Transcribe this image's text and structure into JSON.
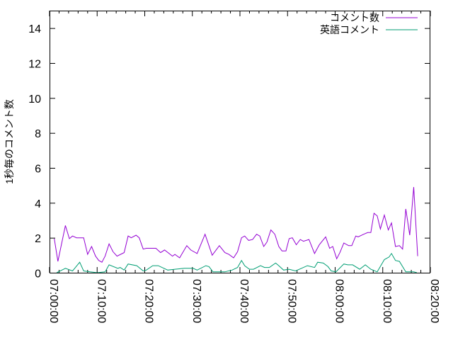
{
  "chart_data": {
    "type": "line",
    "title": "",
    "xlabel": "",
    "ylabel": "1秒毎のコメント数",
    "xlim": [
      "07:00:00",
      "08:20:00"
    ],
    "ylim": [
      0,
      15
    ],
    "x_ticks": [
      "07:00:00",
      "07:10:00",
      "07:20:00",
      "07:30:00",
      "07:40:00",
      "07:50:00",
      "08:00:00",
      "08:10:00",
      "08:20:00"
    ],
    "y_ticks": [
      "0",
      "2",
      "4",
      "6",
      "8",
      "10",
      "12",
      "14"
    ],
    "grid": false,
    "legend": "top-right",
    "series": [
      {
        "name": "コメント数",
        "color": "#9400d3",
        "x": [
          "07:01:00",
          "07:01:45",
          "07:03:20",
          "07:04:10",
          "07:04:50",
          "07:05:40",
          "07:07:10",
          "07:08:00",
          "07:08:50",
          "07:09:40",
          "07:10:20",
          "07:11:00",
          "07:11:40",
          "07:12:30",
          "07:13:20",
          "07:14:10",
          "07:15:40",
          "07:16:30",
          "07:17:10",
          "07:18:10",
          "07:18:50",
          "07:19:40",
          "07:20:20",
          "07:22:20",
          "07:23:20",
          "07:24:10",
          "07:25:50",
          "07:26:20",
          "07:27:20",
          "07:28:50",
          "07:29:40",
          "07:31:00",
          "07:32:40",
          "07:34:10",
          "07:35:40",
          "07:36:50",
          "07:37:40",
          "07:38:40",
          "07:39:30",
          "07:40:20",
          "07:41:00",
          "07:41:50",
          "07:42:40",
          "07:43:30",
          "07:44:10",
          "07:45:00",
          "07:45:40",
          "07:46:30",
          "07:47:20",
          "07:48:10",
          "07:48:50",
          "07:49:40",
          "07:50:20",
          "07:51:00",
          "07:51:50",
          "07:52:40",
          "07:53:20",
          "07:54:30",
          "07:55:40",
          "07:56:40",
          "07:58:00",
          "07:58:50",
          "07:59:30",
          "08:00:20",
          "08:01:00",
          "08:01:50",
          "08:02:50",
          "08:03:30",
          "08:04:20",
          "08:04:50",
          "08:06:00",
          "08:06:50",
          "08:07:30",
          "08:08:10",
          "08:08:50",
          "08:09:30",
          "08:10:20",
          "08:11:10",
          "08:11:50",
          "08:12:40",
          "08:13:30",
          "08:14:10",
          "08:14:50",
          "08:15:40",
          "08:16:30",
          "08:17:20"
        ],
        "y": [
          1.95,
          0.65,
          2.7,
          1.95,
          2.1,
          2.0,
          2.0,
          1.05,
          1.5,
          0.95,
          0.7,
          0.6,
          0.95,
          1.65,
          1.2,
          0.95,
          1.15,
          2.1,
          2.0,
          2.15,
          2.0,
          1.35,
          1.4,
          1.4,
          1.15,
          1.3,
          0.95,
          1.05,
          0.85,
          1.55,
          1.3,
          1.1,
          2.2,
          1.0,
          1.55,
          1.15,
          1.05,
          0.85,
          1.2,
          2.0,
          2.1,
          1.85,
          1.9,
          2.2,
          2.1,
          1.5,
          1.75,
          2.45,
          2.2,
          1.5,
          1.25,
          1.25,
          1.95,
          2.0,
          1.6,
          1.9,
          1.8,
          1.9,
          1.1,
          1.6,
          2.05,
          1.4,
          1.5,
          0.8,
          1.15,
          1.7,
          1.55,
          1.55,
          2.1,
          2.05,
          2.2,
          2.3,
          2.3,
          3.4,
          3.25,
          2.5,
          3.3,
          2.45,
          2.85,
          1.5,
          1.55,
          1.35,
          3.65,
          2.15,
          4.9,
          0.95
        ]
      },
      {
        "name": "英語コメント",
        "color": "#009e73",
        "x": [
          "07:01:30",
          "07:03:20",
          "07:04:50",
          "07:06:20",
          "07:07:10",
          "07:08:30",
          "07:10:00",
          "07:11:40",
          "07:12:30",
          "07:14:20",
          "07:14:50",
          "07:15:40",
          "07:16:30",
          "07:18:20",
          "07:19:40",
          "07:20:20",
          "07:21:40",
          "07:22:50",
          "07:24:50",
          "07:26:20",
          "07:28:20",
          "07:30:10",
          "07:31:00",
          "07:32:50",
          "07:33:30",
          "07:34:20",
          "07:36:50",
          "07:38:20",
          "07:39:30",
          "07:40:20",
          "07:41:00",
          "07:42:00",
          "07:42:50",
          "07:44:20",
          "07:45:10",
          "07:46:10",
          "07:47:30",
          "07:48:10",
          "07:49:10",
          "07:50:20",
          "07:51:40",
          "07:54:10",
          "07:55:40",
          "07:56:20",
          "07:57:30",
          "07:58:30",
          "07:59:10",
          "08:00:10",
          "08:01:50",
          "08:02:40",
          "08:03:40",
          "08:05:10",
          "08:06:20",
          "08:07:30",
          "08:08:50",
          "08:10:20",
          "08:11:20",
          "08:11:50",
          "08:12:40",
          "08:13:30",
          "08:14:50",
          "08:16:30",
          "08:17:10"
        ],
        "y": [
          0,
          0.25,
          0.1,
          0.6,
          0.1,
          0.05,
          0,
          0.05,
          0.45,
          0.25,
          0.3,
          0.15,
          0.5,
          0.4,
          0.1,
          0.15,
          0.4,
          0.4,
          0.15,
          0.2,
          0.25,
          0.25,
          0.15,
          0.4,
          0.35,
          0.05,
          0.05,
          0.15,
          0.3,
          0.7,
          0.4,
          0.2,
          0.2,
          0.4,
          0.3,
          0.3,
          0.55,
          0.4,
          0.15,
          0.2,
          0.1,
          0.4,
          0.3,
          0.6,
          0.55,
          0.35,
          0.1,
          0.05,
          0.5,
          0.45,
          0.45,
          0.2,
          0.45,
          0.2,
          0.05,
          0.75,
          0.9,
          1.1,
          0.7,
          0.65,
          0.05,
          0.05,
          0
        ]
      }
    ]
  }
}
